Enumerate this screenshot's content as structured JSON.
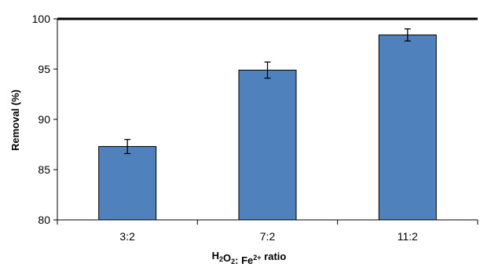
{
  "chart_data": {
    "type": "bar",
    "categories": [
      "3:2",
      "7:2",
      "11:2"
    ],
    "values": [
      87.3,
      94.9,
      98.4
    ],
    "errors": [
      0.7,
      0.8,
      0.6
    ],
    "ylabel": "Removal (%)",
    "xlabel": {
      "parts": [
        {
          "text": "H",
          "sup": false,
          "sub": false
        },
        {
          "text": "2",
          "sup": false,
          "sub": true
        },
        {
          "text": "O",
          "sup": false,
          "sub": false
        },
        {
          "text": "2",
          "sup": false,
          "sub": true
        },
        {
          "text": ": Fe",
          "sup": false,
          "sub": false
        },
        {
          "text": "2+",
          "sup": true,
          "sub": false
        },
        {
          "text": " ratio",
          "sup": false,
          "sub": false
        }
      ]
    },
    "ylim": [
      80,
      100
    ],
    "yticks": [
      80,
      85,
      90,
      95,
      100
    ],
    "grid": false,
    "colors": {
      "bar_fill": "#4f81bd",
      "bar_stroke": "#000000",
      "axis": "#000000"
    }
  }
}
